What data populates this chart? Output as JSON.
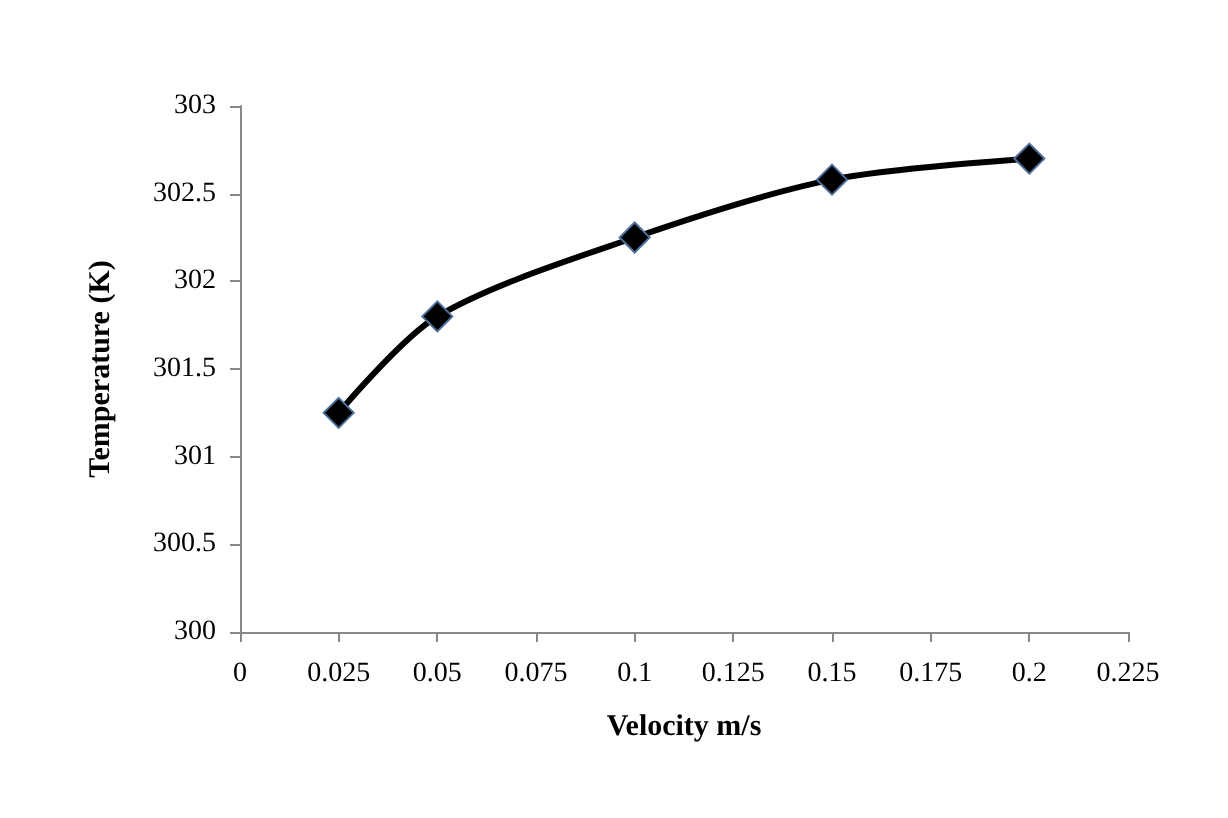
{
  "chart_data": {
    "type": "line",
    "xlabel": "Velocity m/s",
    "ylabel": "Temperature (K)",
    "x": [
      0.025,
      0.05,
      0.1,
      0.15,
      0.2
    ],
    "series": [
      {
        "color": "#000000",
        "values": [
          301.25,
          301.8,
          302.25,
          302.58,
          302.7
        ]
      }
    ],
    "xlim": [
      0,
      0.225
    ],
    "xticks": [
      0,
      0.025,
      0.05,
      0.075,
      0.1,
      0.125,
      0.15,
      0.175,
      0.2,
      0.225
    ],
    "ylim": [
      300,
      303
    ],
    "yticks": [
      300,
      300.5,
      301,
      301.5,
      302,
      302.5,
      303
    ],
    "grid": false,
    "marker": "diamond",
    "line_style": "solid"
  }
}
